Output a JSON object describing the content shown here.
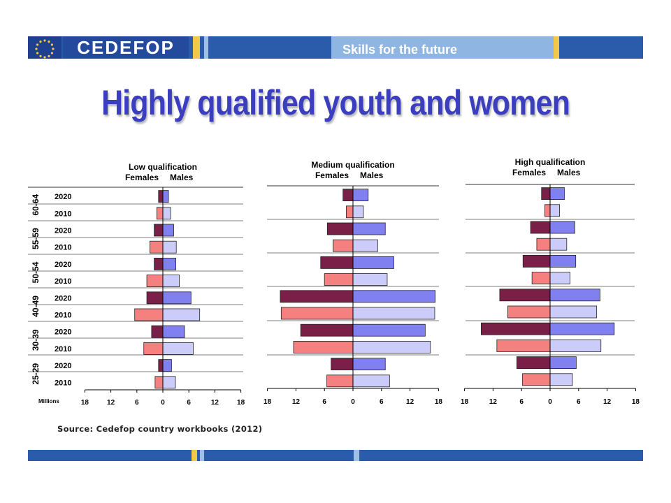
{
  "header": {
    "brand": "CEDEFOP",
    "tagline": "Skills for the future"
  },
  "title": "Highly qualified youth and women",
  "source": "Source: Cedefop country workbooks (2012)",
  "colors": {
    "female_2020": "#7a1f48",
    "female_2010": "#f48080",
    "male_2020": "#8080f0",
    "male_2010": "#ccccfa",
    "header_blue": "#2a5cab",
    "header_gold": "#f2c84b"
  },
  "chart_data": [
    {
      "type": "bar",
      "title": "Low qualification",
      "legend": [
        "Females",
        "Males"
      ],
      "xlabel": "Millions",
      "ylabel": "",
      "xlim": [
        -18,
        18
      ],
      "xticks": [
        "18",
        "12",
        "6",
        "0",
        "6",
        "12",
        "18"
      ],
      "age_groups": [
        "60-64",
        "55-59",
        "50-54",
        "40-49",
        "30-39",
        "25-29"
      ],
      "years": [
        "2020",
        "2010"
      ],
      "series": [
        {
          "name": "Females",
          "values": [
            1.0,
            1.4,
            2.0,
            3.0,
            2.0,
            3.7,
            3.7,
            6.5,
            2.6,
            4.4,
            1.0,
            1.8
          ]
        },
        {
          "name": "Males",
          "values": [
            1.3,
            1.8,
            2.5,
            3.1,
            3.0,
            3.8,
            6.5,
            8.5,
            5.0,
            7.0,
            2.0,
            2.9
          ]
        }
      ]
    },
    {
      "type": "bar",
      "title": "Medium qualification",
      "legend": [
        "Females",
        "Males"
      ],
      "xlabel": "",
      "ylabel": "",
      "xlim": [
        -18,
        18
      ],
      "xticks": [
        "18",
        "12",
        "6",
        "0",
        "6",
        "12",
        "18"
      ],
      "age_groups": [
        "60-64",
        "55-59",
        "50-54",
        "40-49",
        "30-39",
        "25-29"
      ],
      "years": [
        "2020",
        "2010"
      ],
      "series": [
        {
          "name": "Females",
          "values": [
            2.1,
            1.4,
            5.4,
            4.2,
            6.8,
            6.0,
            15.3,
            15.1,
            11.0,
            12.5,
            4.6,
            5.5
          ]
        },
        {
          "name": "Males",
          "values": [
            3.2,
            2.2,
            6.8,
            5.2,
            8.6,
            7.2,
            17.3,
            17.2,
            15.2,
            16.3,
            6.8,
            7.7
          ]
        }
      ]
    },
    {
      "type": "bar",
      "title": "High qualification",
      "legend": [
        "Females",
        "Males"
      ],
      "xlabel": "",
      "ylabel": "",
      "xlim": [
        -18,
        18
      ],
      "xticks": [
        "18",
        "12",
        "6",
        "0",
        "6",
        "12",
        "18"
      ],
      "age_groups": [
        "60-64",
        "55-59",
        "50-54",
        "40-49",
        "30-39",
        "25-29"
      ],
      "years": [
        "2020",
        "2010"
      ],
      "series": [
        {
          "name": "Females",
          "values": [
            1.8,
            1.1,
            4.1,
            2.8,
            5.7,
            3.8,
            10.6,
            8.9,
            14.5,
            11.2,
            7.0,
            5.8
          ]
        },
        {
          "name": "Males",
          "values": [
            3.0,
            2.0,
            5.2,
            3.5,
            5.4,
            4.2,
            10.5,
            9.8,
            13.5,
            10.7,
            5.5,
            4.7
          ]
        }
      ]
    }
  ]
}
